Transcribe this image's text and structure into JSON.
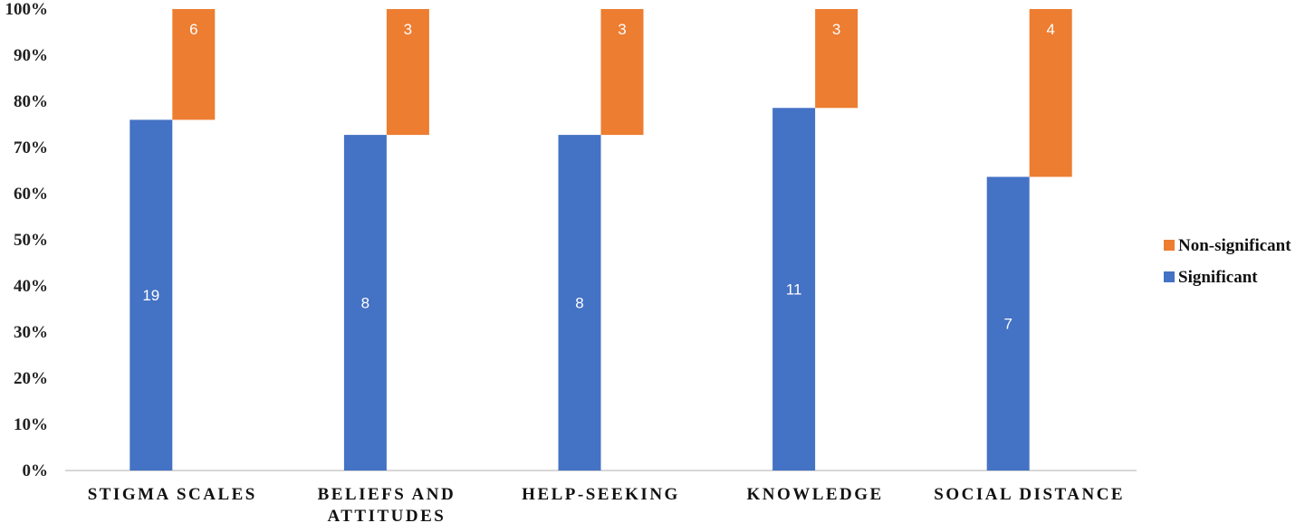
{
  "chart_data": {
    "type": "bar",
    "stacked": true,
    "percent_stacked": true,
    "categories": [
      [
        "STIGMA SCALES"
      ],
      [
        "BELIEFS AND",
        "ATTITUDES"
      ],
      [
        "HELP-SEEKING"
      ],
      [
        "KNOWLEDGE"
      ],
      [
        "SOCIAL DISTANCE"
      ]
    ],
    "series": [
      {
        "name": "Significant",
        "color": "#4472C4",
        "values": [
          19,
          8,
          8,
          11,
          7
        ]
      },
      {
        "name": "Non-significant",
        "color": "#ED7D31",
        "values": [
          6,
          3,
          3,
          3,
          4
        ]
      }
    ],
    "yticks": [
      "0%",
      "10%",
      "20%",
      "30%",
      "40%",
      "50%",
      "60%",
      "70%",
      "80%",
      "90%",
      "100%"
    ],
    "ylim": [
      0,
      100
    ],
    "grid": false,
    "legend": {
      "position": "right",
      "order": [
        "Non-significant",
        "Significant"
      ]
    }
  }
}
